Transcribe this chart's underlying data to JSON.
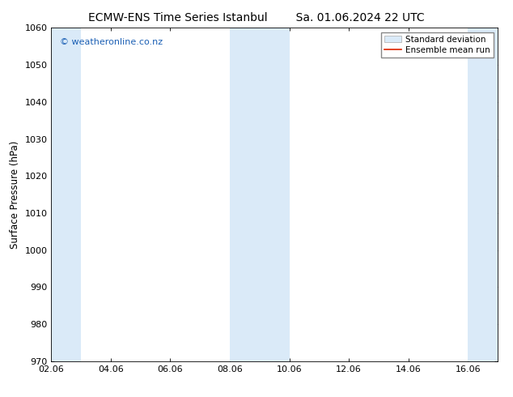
{
  "title_left": "ECMW-ENS Time Series Istanbul",
  "title_right": "Sa. 01.06.2024 22 UTC",
  "ylabel": "Surface Pressure (hPa)",
  "ylim": [
    970,
    1060
  ],
  "yticks": [
    970,
    980,
    990,
    1000,
    1010,
    1020,
    1030,
    1040,
    1050,
    1060
  ],
  "xlim": [
    0,
    15
  ],
  "xtick_positions": [
    0,
    2,
    4,
    6,
    8,
    10,
    12,
    14
  ],
  "xtick_labels": [
    "02.06",
    "04.06",
    "06.06",
    "08.06",
    "10.06",
    "12.06",
    "14.06",
    "16.06"
  ],
  "background_color": "#ffffff",
  "plot_bg_color": "#ffffff",
  "shaded_bands": [
    {
      "x_start": 0.0,
      "x_end": 1.0
    },
    {
      "x_start": 6.0,
      "x_end": 8.0
    },
    {
      "x_start": 14.0,
      "x_end": 15.0
    }
  ],
  "band_color": "#daeaf8",
  "watermark_text": "© weatheronline.co.nz",
  "watermark_color": "#1a5fb4",
  "legend_std_label": "Standard deviation",
  "legend_mean_label": "Ensemble mean run",
  "legend_std_facecolor": "#daeaf8",
  "legend_std_edgecolor": "#aaaaaa",
  "legend_mean_color": "#dd2200",
  "title_fontsize": 10,
  "tick_fontsize": 8,
  "ylabel_fontsize": 8.5,
  "watermark_fontsize": 8,
  "legend_fontsize": 7.5
}
